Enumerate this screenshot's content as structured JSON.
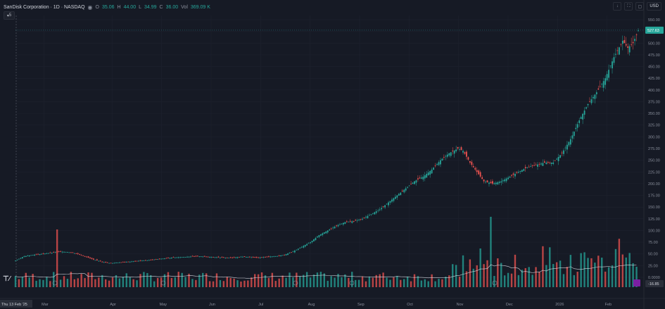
{
  "legend": {
    "symbol": "SanDisk Corporation · 1D · NASDAQ",
    "open_label": "O",
    "open": "35.06",
    "high_label": "H",
    "high": "44.00",
    "low_label": "L",
    "low": "34.99",
    "close_label": "C",
    "close": "36.00",
    "vol_label": "Vol",
    "vol": "369.09 K"
  },
  "indicator_toggle": "5",
  "currency": "USD",
  "colors": {
    "up": "#26a69a",
    "down": "#ef5350",
    "bg": "#161a25",
    "grid": "#1f2330"
  },
  "price_axis": {
    "ticks": [
      "550.00",
      "525.00",
      "500.00",
      "475.00",
      "450.00",
      "425.00",
      "400.00",
      "375.00",
      "350.00",
      "325.00",
      "300.00",
      "275.00",
      "250.00",
      "225.00",
      "200.00",
      "175.00",
      "150.00",
      "125.00",
      "100.00",
      "75.00",
      "50.00",
      "25.00",
      "0.0000"
    ],
    "last_price": "527.63",
    "indicator_value": "-16.85"
  },
  "time_axis": {
    "crosshair_label": "Thu 13 Feb '25",
    "months": [
      "Mar",
      "Apr",
      "May",
      "Jun",
      "Jul",
      "Aug",
      "Sep",
      "Oct",
      "Nov",
      "Dec",
      "2026",
      "Feb"
    ]
  },
  "chart_data": {
    "type": "candlestick",
    "title": "SanDisk Corporation · 1D · NASDAQ",
    "ylim": [
      0,
      550
    ],
    "x_range": [
      "2025-02-13",
      "2026-02-03"
    ],
    "close_path": [
      [
        0,
        36
      ],
      [
        5,
        45
      ],
      [
        10,
        48
      ],
      [
        15,
        50
      ],
      [
        20,
        52
      ],
      [
        25,
        55
      ],
      [
        30,
        54
      ],
      [
        35,
        51
      ],
      [
        40,
        45
      ],
      [
        45,
        38
      ],
      [
        50,
        33
      ],
      [
        55,
        30
      ],
      [
        60,
        32
      ],
      [
        65,
        33
      ],
      [
        70,
        35
      ],
      [
        75,
        36
      ],
      [
        80,
        38
      ],
      [
        85,
        40
      ],
      [
        90,
        42
      ],
      [
        95,
        43
      ],
      [
        100,
        44
      ],
      [
        105,
        45
      ],
      [
        110,
        44
      ],
      [
        115,
        43
      ],
      [
        120,
        42
      ],
      [
        125,
        42
      ],
      [
        130,
        44
      ],
      [
        135,
        43
      ],
      [
        140,
        42
      ],
      [
        145,
        44
      ],
      [
        150,
        45
      ],
      [
        155,
        48
      ],
      [
        160,
        55
      ],
      [
        165,
        65
      ],
      [
        170,
        75
      ],
      [
        175,
        90
      ],
      [
        180,
        100
      ],
      [
        185,
        110
      ],
      [
        190,
        118
      ],
      [
        195,
        120
      ],
      [
        200,
        125
      ],
      [
        205,
        135
      ],
      [
        210,
        145
      ],
      [
        215,
        160
      ],
      [
        220,
        175
      ],
      [
        225,
        190
      ],
      [
        230,
        205
      ],
      [
        235,
        215
      ],
      [
        240,
        230
      ],
      [
        245,
        250
      ],
      [
        250,
        265
      ],
      [
        255,
        275
      ],
      [
        258,
        270
      ],
      [
        262,
        245
      ],
      [
        266,
        225
      ],
      [
        270,
        205
      ],
      [
        275,
        200
      ],
      [
        280,
        205
      ],
      [
        285,
        215
      ],
      [
        290,
        225
      ],
      [
        295,
        235
      ],
      [
        300,
        240
      ],
      [
        305,
        245
      ],
      [
        310,
        245
      ],
      [
        315,
        265
      ],
      [
        320,
        295
      ],
      [
        325,
        335
      ],
      [
        330,
        370
      ],
      [
        335,
        395
      ],
      [
        340,
        425
      ],
      [
        345,
        470
      ],
      [
        350,
        505
      ],
      [
        353,
        490
      ],
      [
        356,
        500
      ],
      [
        359,
        527
      ]
    ]
  }
}
